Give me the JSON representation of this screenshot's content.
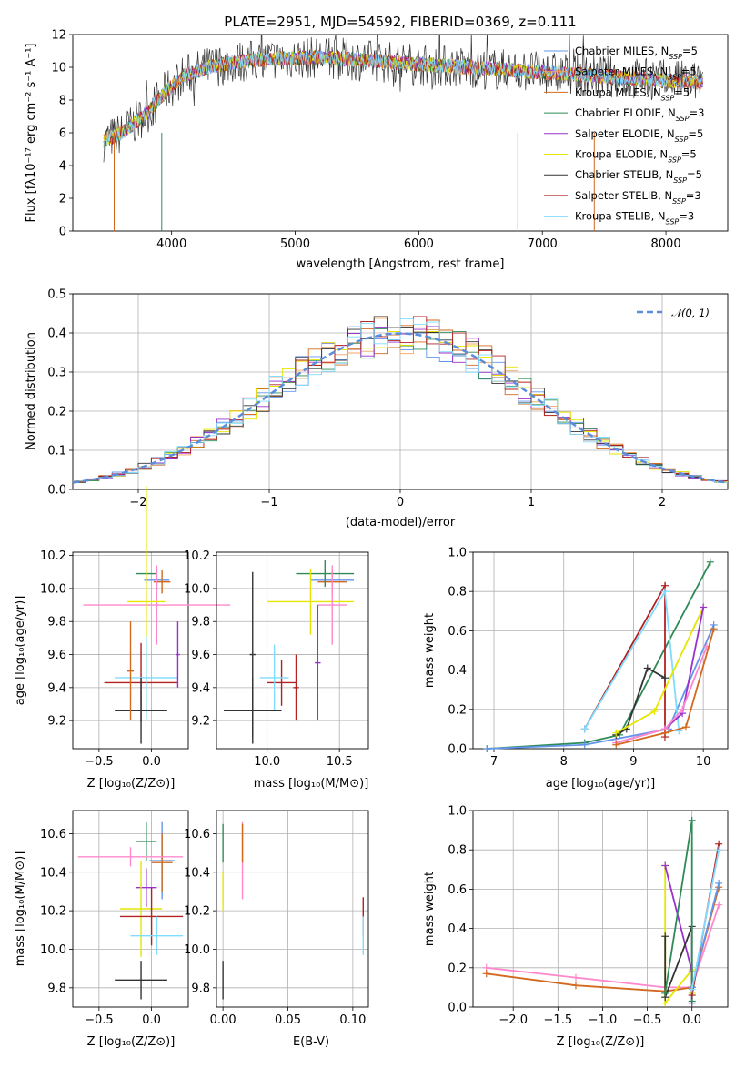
{
  "chart_data": [
    {
      "type": "line",
      "title": "PLATE=2951, MJD=54592, FIBERID=0369, z=0.111",
      "xlabel": "wavelength [Angstrom, rest frame]",
      "ylabel": "Flux [fλ10⁻¹⁷ erg cm⁻² s⁻¹ A⁻¹]",
      "xlim": [
        3200,
        8500
      ],
      "ylim": [
        0,
        12
      ],
      "xticks": [
        "4000",
        "5000",
        "6000",
        "7000",
        "8000"
      ],
      "yticks": [
        "0",
        "2",
        "4",
        "6",
        "8",
        "10",
        "12"
      ],
      "continuum_x": [
        3450,
        3600,
        3800,
        3950,
        4100,
        4300,
        4500,
        4800,
        5200,
        5600,
        6000,
        6400,
        6800,
        7200,
        7600,
        8000,
        8300
      ],
      "continuum_y": [
        5.5,
        6.0,
        7.2,
        8.5,
        9.5,
        10.0,
        10.3,
        10.5,
        10.6,
        10.4,
        10.2,
        10.0,
        9.8,
        9.6,
        9.4,
        9.2,
        9.1
      ],
      "legend_loc": "upper right",
      "series": [
        {
          "name": "Chabrier MILES, N_SSP=5",
          "legend_text": "Chabrier MILES, N",
          "sub": "SSP",
          "suffix": "=5",
          "color": "#6495ED"
        },
        {
          "name": "Salpeter MILES, N_SSP=5",
          "legend_text": "Salpeter MILES, N",
          "sub": "SSP",
          "suffix": "=5",
          "color": "#F4A460"
        },
        {
          "name": "Kroupa MILES, N_SSP=5",
          "legend_text": "Kroupa MILES, N",
          "sub": "SSP",
          "suffix": "=5",
          "color": "#D2691E"
        },
        {
          "name": "Chabrier ELODIE, N_SSP=3",
          "legend_text": "Chabrier ELODIE, N",
          "sub": "SSP",
          "suffix": "=3",
          "color": "#2E8B57"
        },
        {
          "name": "Salpeter ELODIE, N_SSP=5",
          "legend_text": "Salpeter ELODIE, N",
          "sub": "SSP",
          "suffix": "=5",
          "color": "#9932CC"
        },
        {
          "name": "Kroupa ELODIE, N_SSP=5",
          "legend_text": "Kroupa ELODIE, N",
          "sub": "SSP",
          "suffix": "=5",
          "color": "#E6E600"
        },
        {
          "name": "Chabrier STELIB, N_SSP=5",
          "legend_text": "Chabrier STELIB, N",
          "sub": "SSP",
          "suffix": "=5",
          "color": "#333333"
        },
        {
          "name": "Salpeter STELIB, N_SSP=3",
          "legend_text": "Salpeter STELIB, N",
          "sub": "SSP",
          "suffix": "=3",
          "color": "#B22222"
        },
        {
          "name": "Kroupa STELIB, N_SSP=3",
          "legend_text": "Kroupa STELIB, N",
          "sub": "SSP",
          "suffix": "=3",
          "color": "#7FDBFF"
        }
      ]
    },
    {
      "type": "line",
      "xlabel": "(data-model)/error",
      "ylabel": "Normed distribution",
      "xlim": [
        -2.5,
        2.5
      ],
      "ylim": [
        0,
        0.5
      ],
      "xticks": [
        "−2",
        "−1",
        "0",
        "1",
        "2"
      ],
      "yticks": [
        "0.0",
        "0.1",
        "0.2",
        "0.3",
        "0.4",
        "0.5"
      ],
      "legend": "𝒩(0, 1)",
      "gauss": {
        "mu": 0,
        "sigma": 1,
        "color": "#5B8DD9"
      },
      "hist_colors": [
        "#6495ED",
        "#F4A460",
        "#D2691E",
        "#2E8B57",
        "#9932CC",
        "#E6E600",
        "#333333",
        "#B22222",
        "#7FDBFF"
      ]
    },
    {
      "type": "scatter",
      "xlabel": "Z [log₁₀(Z/Z⊙)]",
      "ylabel": "age  [log₁₀(age/yr)]",
      "xlim": [
        -0.75,
        0.35
      ],
      "ylim": [
        9.03,
        10.22
      ],
      "xticks": [
        "−0.5",
        "0.0"
      ],
      "yticks": [
        "9.2",
        "9.4",
        "9.6",
        "9.8",
        "10.0",
        "10.2"
      ],
      "points": [
        {
          "x": 0.05,
          "y": 10.05,
          "xerr": 0.12,
          "yerr": 0.06,
          "color": "#6495ED"
        },
        {
          "x": 0.1,
          "y": 10.04,
          "xerr": 0.08,
          "yerr": 0.07,
          "color": "#D2691E"
        },
        {
          "x": -0.05,
          "y": 10.09,
          "xerr": 0.1,
          "yerr": 0.08,
          "color": "#2E8B57"
        },
        {
          "x": 0.05,
          "y": 9.9,
          "xerr": 0.7,
          "yerr": 0.24,
          "color": "#FF88CC"
        },
        {
          "x": -0.05,
          "y": 9.92,
          "xerr": 0.18,
          "yerr": 0.7,
          "color": "#E6E600"
        },
        {
          "x": -0.1,
          "y": 9.43,
          "xerr": 0.35,
          "yerr": 0.24,
          "color": "#B22222"
        },
        {
          "x": -0.05,
          "y": 9.46,
          "xerr": 0.3,
          "yerr": 0.25,
          "color": "#7FDBFF"
        },
        {
          "x": -0.1,
          "y": 9.26,
          "xerr": 0.25,
          "yerr": 0.2,
          "color": "#333333"
        },
        {
          "x": -0.2,
          "y": 9.5,
          "xerr": 0.03,
          "yerr": 0.3,
          "color": "#D2691E"
        },
        {
          "x": 0.25,
          "y": 9.6,
          "xerr": 0.02,
          "yerr": 0.2,
          "color": "#9932CC"
        }
      ]
    },
    {
      "type": "scatter",
      "xlabel": "mass [log₁₀(M/M⊙)]",
      "xlim": [
        9.65,
        10.7
      ],
      "ylim": [
        9.03,
        10.22
      ],
      "xticks": [
        "10.0",
        "10.5"
      ],
      "yticks": [
        "9.2",
        "9.4",
        "9.6",
        "9.8",
        "10.0",
        "10.2"
      ],
      "points": [
        {
          "x": 10.45,
          "y": 10.05,
          "xerr": 0.15,
          "yerr": 0.06,
          "color": "#6495ED"
        },
        {
          "x": 10.45,
          "y": 10.04,
          "xerr": 0.1,
          "yerr": 0.07,
          "color": "#D2691E"
        },
        {
          "x": 10.4,
          "y": 10.09,
          "xerr": 0.2,
          "yerr": 0.08,
          "color": "#2E8B57"
        },
        {
          "x": 10.3,
          "y": 9.92,
          "xerr": 0.3,
          "yerr": 0.2,
          "color": "#E6E600"
        },
        {
          "x": 10.45,
          "y": 9.9,
          "xerr": 0.1,
          "yerr": 0.24,
          "color": "#FF88CC"
        },
        {
          "x": 10.1,
          "y": 9.43,
          "xerr": 0.1,
          "yerr": 0.14,
          "color": "#B22222"
        },
        {
          "x": 10.05,
          "y": 9.46,
          "xerr": 0.1,
          "yerr": 0.2,
          "color": "#7FDBFF"
        },
        {
          "x": 9.9,
          "y": 9.26,
          "xerr": 0.2,
          "yerr": 0.2,
          "color": "#333333"
        },
        {
          "x": 9.9,
          "y": 9.6,
          "xerr": 0.02,
          "yerr": 0.5,
          "color": "#333333"
        },
        {
          "x": 10.2,
          "y": 9.4,
          "xerr": 0.02,
          "yerr": 0.2,
          "color": "#B22222"
        },
        {
          "x": 10.35,
          "y": 9.55,
          "xerr": 0.02,
          "yerr": 0.35,
          "color": "#9932CC"
        }
      ]
    },
    {
      "type": "line",
      "xlabel": "age  [log₁₀(age/yr)]",
      "ylabel": "mass weight",
      "xlim": [
        6.7,
        10.35
      ],
      "ylim": [
        0,
        1.0
      ],
      "xticks": [
        "7",
        "8",
        "9",
        "10"
      ],
      "yticks": [
        "0.0",
        "0.2",
        "0.4",
        "0.6",
        "0.8",
        "1.0"
      ],
      "series": [
        {
          "color": "#2E8B57",
          "x": [
            6.9,
            8.3,
            8.8,
            10.1
          ],
          "y": [
            0.0,
            0.03,
            0.07,
            0.95
          ]
        },
        {
          "color": "#6495ED",
          "x": [
            6.9,
            8.3,
            9.5,
            10.15
          ],
          "y": [
            0.0,
            0.02,
            0.1,
            0.63
          ]
        },
        {
          "color": "#B22222",
          "x": [
            8.3,
            9.45,
            9.45
          ],
          "y": [
            0.1,
            0.83,
            0.06
          ]
        },
        {
          "color": "#7FDBFF",
          "x": [
            8.3,
            9.45,
            9.65
          ],
          "y": [
            0.1,
            0.8,
            0.09
          ]
        },
        {
          "color": "#333333",
          "x": [
            8.75,
            8.9,
            9.2,
            9.45
          ],
          "y": [
            0.07,
            0.1,
            0.41,
            0.36
          ]
        },
        {
          "color": "#E6E600",
          "x": [
            8.75,
            9.3,
            10.0
          ],
          "y": [
            0.08,
            0.19,
            0.72
          ]
        },
        {
          "color": "#9932CC",
          "x": [
            8.75,
            9.45,
            9.7,
            10.0
          ],
          "y": [
            0.03,
            0.1,
            0.18,
            0.72
          ]
        },
        {
          "color": "#FF88CC",
          "x": [
            8.75,
            9.45,
            9.7,
            10.05
          ],
          "y": [
            0.03,
            0.1,
            0.2,
            0.52
          ]
        },
        {
          "color": "#D2691E",
          "x": [
            8.75,
            9.45,
            9.75,
            10.15
          ],
          "y": [
            0.02,
            0.08,
            0.11,
            0.61
          ]
        }
      ]
    },
    {
      "type": "scatter",
      "xlabel": "Z [log₁₀(Z/Z⊙)]",
      "ylabel": "mass [log₁₀(M/M⊙)]",
      "xlim": [
        -0.75,
        0.35
      ],
      "ylim": [
        9.7,
        10.72
      ],
      "xticks": [
        "−0.5",
        "0.0"
      ],
      "yticks": [
        "9.8",
        "10.0",
        "10.2",
        "10.4",
        "10.6"
      ],
      "points": [
        {
          "x": 0.1,
          "y": 10.46,
          "xerr": 0.12,
          "yerr": 0.2,
          "color": "#6495ED"
        },
        {
          "x": 0.1,
          "y": 10.45,
          "xerr": 0.1,
          "yerr": 0.15,
          "color": "#D2691E"
        },
        {
          "x": -0.05,
          "y": 10.56,
          "xerr": 0.1,
          "yerr": 0.1,
          "color": "#2E8B57"
        },
        {
          "x": -0.2,
          "y": 10.48,
          "xerr": 0.5,
          "yerr": 0.05,
          "color": "#FF88CC"
        },
        {
          "x": -0.05,
          "y": 10.32,
          "xerr": 0.1,
          "yerr": 0.1,
          "color": "#9932CC"
        },
        {
          "x": -0.1,
          "y": 10.21,
          "xerr": 0.2,
          "yerr": 0.25,
          "color": "#E6E600"
        },
        {
          "x": 0.0,
          "y": 10.17,
          "xerr": 0.3,
          "yerr": 0.15,
          "color": "#B22222"
        },
        {
          "x": 0.05,
          "y": 10.07,
          "xerr": 0.25,
          "yerr": 0.1,
          "color": "#7FDBFF"
        },
        {
          "x": -0.1,
          "y": 9.84,
          "xerr": 0.25,
          "yerr": 0.1,
          "color": "#333333"
        }
      ]
    },
    {
      "type": "scatter",
      "xlabel": "E(B-V)",
      "xlim": [
        -0.005,
        0.112
      ],
      "ylim": [
        9.7,
        10.72
      ],
      "xticks": [
        "0.00",
        "0.05",
        "0.10"
      ],
      "yticks": [
        "9.8",
        "10.0",
        "10.2",
        "10.4",
        "10.6"
      ],
      "points": [
        {
          "x": 0.0,
          "y": 10.55,
          "yerr": 0.1,
          "color": "#2E8B57"
        },
        {
          "x": 0.0,
          "y": 10.3,
          "yerr": 0.1,
          "color": "#E6E600"
        },
        {
          "x": 0.0,
          "y": 9.84,
          "yerr": 0.1,
          "color": "#333333"
        },
        {
          "x": 0.015,
          "y": 10.46,
          "yerr": 0.2,
          "color": "#FF88CC"
        },
        {
          "x": 0.015,
          "y": 10.55,
          "yerr": 0.1,
          "color": "#D2691E"
        },
        {
          "x": 0.108,
          "y": 10.17,
          "yerr": 0.1,
          "color": "#B22222"
        },
        {
          "x": 0.108,
          "y": 10.07,
          "yerr": 0.1,
          "color": "#7FDBFF"
        }
      ]
    },
    {
      "type": "line",
      "xlabel": "Z [log₁₀(Z/Z⊙)]",
      "ylabel": "mass weight",
      "xlim": [
        -2.45,
        0.4
      ],
      "ylim": [
        0,
        1.0
      ],
      "xticks": [
        "−2.0",
        "−1.5",
        "−1.0",
        "−0.5",
        "0.0"
      ],
      "yticks": [
        "0.0",
        "0.2",
        "0.4",
        "0.6",
        "0.8",
        "1.0"
      ],
      "series": [
        {
          "color": "#FF88CC",
          "x": [
            -2.3,
            -1.3,
            -0.3,
            0.0,
            0.3
          ],
          "y": [
            0.2,
            0.15,
            0.1,
            0.1,
            0.52
          ]
        },
        {
          "color": "#D2691E",
          "x": [
            -2.3,
            -1.3,
            -0.3,
            0.0,
            0.3
          ],
          "y": [
            0.17,
            0.11,
            0.08,
            0.1,
            0.61
          ]
        },
        {
          "color": "#E6E600",
          "x": [
            -0.3,
            -0.3,
            0.0,
            0.0
          ],
          "y": [
            0.72,
            0.02,
            0.19,
            0.07
          ]
        },
        {
          "color": "#9932CC",
          "x": [
            -0.3,
            0.0,
            0.0
          ],
          "y": [
            0.72,
            0.18,
            0.02
          ]
        },
        {
          "color": "#333333",
          "x": [
            -0.3,
            -0.3,
            0.0,
            0.0
          ],
          "y": [
            0.36,
            0.05,
            0.41,
            0.1
          ]
        },
        {
          "color": "#2E8B57",
          "x": [
            -0.3,
            0.0,
            0.0
          ],
          "y": [
            0.07,
            0.95,
            0.03
          ]
        },
        {
          "color": "#B22222",
          "x": [
            0.0,
            0.3
          ],
          "y": [
            0.06,
            0.83
          ]
        },
        {
          "color": "#6495ED",
          "x": [
            0.0,
            0.3
          ],
          "y": [
            0.1,
            0.63
          ]
        },
        {
          "color": "#7FDBFF",
          "x": [
            0.0,
            0.3
          ],
          "y": [
            0.09,
            0.8
          ]
        }
      ]
    }
  ]
}
